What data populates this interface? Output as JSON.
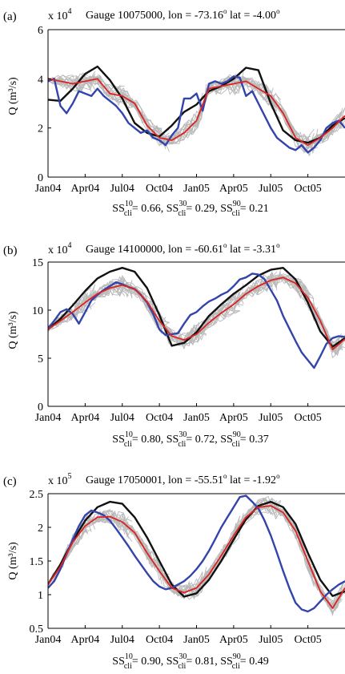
{
  "chart_data": [
    {
      "type": "line",
      "panel_label": "(a)",
      "exponent_label": "x 10",
      "exponent": "4",
      "title": "Gauge 10075000, lon = -73.16",
      "title_deg1": "o",
      "title_mid": " lat = -4.00",
      "title_deg2": "o",
      "ylabel": "Q (m³/s)",
      "xticks": [
        "Jan04",
        "Apr04",
        "Jul04",
        "Oct04",
        "Jan05",
        "Apr05",
        "Jul05",
        "Oct05"
      ],
      "yticks": [
        "0",
        "2",
        "4",
        "6"
      ],
      "ylim": [
        0,
        6
      ],
      "xlim": [
        0,
        24
      ],
      "grid": false,
      "skill": {
        "s10": "= 0.66, SS",
        "s30": "= 0.29, SS",
        "s90": "= 0.21"
      },
      "series": [
        {
          "color": "#111111",
          "width": 2.4,
          "x": [
            0,
            1,
            2,
            3,
            4,
            5,
            6,
            7,
            8,
            9,
            10,
            11,
            12,
            13,
            14,
            15,
            16,
            17,
            18,
            19,
            20,
            21,
            22,
            23,
            24
          ],
          "y": [
            3.15,
            3.1,
            3.6,
            4.2,
            4.5,
            3.95,
            3.2,
            2.2,
            1.8,
            1.65,
            2.1,
            2.65,
            2.95,
            3.5,
            3.7,
            4.0,
            4.45,
            4.35,
            3.0,
            1.9,
            1.5,
            1.4,
            1.6,
            2.1,
            2.4
          ]
        },
        {
          "color": "#3344aa",
          "width": 2.4,
          "x": [
            0,
            0.5,
            1,
            1.5,
            2,
            2.5,
            3,
            3.5,
            4,
            4.5,
            5,
            5.5,
            6,
            6.5,
            7,
            7.5,
            8,
            8.5,
            9,
            9.5,
            10,
            10.5,
            11,
            11.5,
            12,
            12.5,
            13,
            13.5,
            14,
            14.5,
            15,
            15.5,
            16,
            16.5,
            17,
            17.5,
            18,
            18.5,
            19,
            19.5,
            20,
            20.5,
            21,
            21.5,
            22,
            22.5,
            23,
            23.5,
            24
          ],
          "y": [
            3.9,
            4.0,
            2.9,
            2.6,
            3.0,
            3.5,
            3.4,
            3.3,
            3.6,
            3.3,
            3.1,
            2.9,
            2.6,
            2.2,
            2.0,
            1.8,
            1.9,
            1.6,
            1.5,
            1.3,
            1.7,
            2.0,
            3.2,
            3.2,
            3.4,
            2.7,
            3.8,
            3.9,
            3.8,
            3.9,
            4.1,
            4.05,
            3.3,
            3.5,
            3.0,
            2.5,
            2.0,
            1.6,
            1.4,
            1.2,
            1.1,
            1.3,
            1.0,
            1.2,
            1.5,
            2.0,
            2.2,
            2.3,
            2.0
          ]
        },
        {
          "color": "#dd2222",
          "width": 1.8,
          "x": [
            0,
            1,
            2,
            3,
            4,
            5,
            6,
            7,
            8,
            9,
            10,
            11,
            12,
            13,
            14,
            15,
            16,
            17,
            18,
            19,
            20,
            21,
            22,
            23,
            24
          ],
          "y": [
            4.0,
            3.9,
            3.8,
            3.9,
            4.0,
            3.4,
            3.3,
            3.0,
            2.1,
            1.6,
            1.5,
            1.8,
            2.3,
            3.6,
            3.7,
            3.8,
            3.9,
            3.6,
            3.3,
            2.6,
            1.6,
            1.3,
            1.6,
            2.0,
            2.5
          ]
        }
      ]
    },
    {
      "type": "line",
      "panel_label": "(b)",
      "exponent_label": "x 10",
      "exponent": "4",
      "title": "Gauge 14100000, lon = -60.61",
      "title_deg1": "o",
      "title_mid": " lat = -3.31",
      "title_deg2": "o",
      "ylabel": "Q (m³/s)",
      "xticks": [
        "Jan04",
        "Apr04",
        "Jul04",
        "Oct04",
        "Jan05",
        "Apr05",
        "Jul05",
        "Oct05"
      ],
      "yticks": [
        "0",
        "5",
        "10",
        "15"
      ],
      "ylim": [
        0,
        15
      ],
      "xlim": [
        0,
        24
      ],
      "grid": false,
      "skill": {
        "s10": "= 0.80, SS",
        "s30": "= 0.72, SS",
        "s90": "= 0.37"
      },
      "series": [
        {
          "color": "#111111",
          "width": 2.4,
          "x": [
            0,
            1,
            2,
            3,
            4,
            5,
            6,
            7,
            8,
            9,
            10,
            11,
            12,
            13,
            14,
            15,
            16,
            17,
            18,
            19,
            20,
            21,
            22,
            23,
            24
          ],
          "y": [
            8.0,
            9.1,
            10.5,
            12.0,
            13.3,
            14.0,
            14.4,
            14.0,
            12.3,
            9.5,
            6.3,
            6.6,
            7.7,
            9.4,
            10.6,
            11.7,
            12.6,
            13.6,
            14.2,
            14.4,
            13.2,
            10.8,
            7.8,
            6.2,
            7.1
          ]
        },
        {
          "color": "#3344aa",
          "width": 2.4,
          "x": [
            0,
            0.5,
            1,
            1.5,
            2,
            2.5,
            3,
            3.5,
            4,
            4.5,
            5,
            5.5,
            6,
            6.5,
            7,
            7.5,
            8,
            8.5,
            9,
            9.5,
            10,
            10.5,
            11,
            11.5,
            12,
            12.5,
            13,
            13.5,
            14,
            14.5,
            15,
            15.5,
            16,
            16.5,
            17,
            17.5,
            18,
            18.5,
            19,
            19.5,
            20,
            20.5,
            21,
            21.5,
            22,
            22.5,
            23,
            23.5,
            24
          ],
          "y": [
            8.1,
            8.9,
            9.8,
            10.1,
            9.6,
            8.6,
            9.8,
            11.0,
            11.6,
            12.1,
            12.5,
            12.9,
            12.7,
            12.4,
            12.2,
            11.6,
            10.8,
            9.6,
            8.0,
            7.4,
            7.5,
            7.6,
            8.6,
            9.5,
            9.8,
            10.4,
            10.9,
            11.2,
            11.6,
            11.9,
            12.5,
            13.2,
            13.4,
            13.8,
            13.7,
            13.2,
            12.1,
            11.0,
            9.4,
            8.1,
            6.8,
            5.6,
            4.8,
            4.0,
            5.2,
            6.5,
            7.1,
            7.3,
            7.2
          ]
        },
        {
          "color": "#dd2222",
          "width": 1.8,
          "x": [
            0,
            1,
            2,
            3,
            4,
            5,
            6,
            7,
            8,
            9,
            10,
            11,
            12,
            13,
            14,
            15,
            16,
            17,
            18,
            19,
            20,
            21,
            22,
            23,
            24
          ],
          "y": [
            8.0,
            8.9,
            9.8,
            10.8,
            11.7,
            12.3,
            12.6,
            12.2,
            10.9,
            8.9,
            7.3,
            6.9,
            7.5,
            8.7,
            9.7,
            10.6,
            11.7,
            12.5,
            13.1,
            13.4,
            12.8,
            11.3,
            8.9,
            5.9,
            7.0
          ]
        }
      ]
    },
    {
      "type": "line",
      "panel_label": "(c)",
      "exponent_label": "x 10",
      "exponent": "5",
      "title": "Gauge 17050001, lon = -55.51",
      "title_deg1": "o",
      "title_mid": " lat = -1.92",
      "title_deg2": "o",
      "ylabel": "Q (m³/s)",
      "xticks": [
        "Jan04",
        "Apr04",
        "Jul04",
        "Oct04",
        "Jan05",
        "Apr05",
        "Jul05",
        "Oct05"
      ],
      "yticks": [
        "0.5",
        "1",
        "1.5",
        "2",
        "2.5"
      ],
      "ylim": [
        0.5,
        2.5
      ],
      "xlim": [
        0,
        24
      ],
      "grid": false,
      "skill": {
        "s10": "= 0.90, SS",
        "s30": "= 0.81, SS",
        "s90": "= 0.49"
      },
      "series": [
        {
          "color": "#111111",
          "width": 2.4,
          "x": [
            0,
            1,
            2,
            3,
            4,
            5,
            6,
            7,
            8,
            9,
            10,
            11,
            12,
            13,
            14,
            15,
            16,
            17,
            18,
            19,
            20,
            21,
            22,
            23,
            24
          ],
          "y": [
            1.15,
            1.45,
            1.8,
            2.1,
            2.3,
            2.38,
            2.35,
            2.15,
            1.85,
            1.5,
            1.15,
            0.97,
            1.02,
            1.22,
            1.5,
            1.82,
            2.12,
            2.32,
            2.38,
            2.3,
            2.05,
            1.62,
            1.22,
            0.98,
            1.05
          ]
        },
        {
          "color": "#3344aa",
          "width": 2.4,
          "x": [
            0,
            0.5,
            1,
            1.5,
            2,
            2.5,
            3,
            3.5,
            4,
            4.5,
            5,
            5.5,
            6,
            6.5,
            7,
            7.5,
            8,
            8.5,
            9,
            9.5,
            10,
            10.5,
            11,
            11.5,
            12,
            12.5,
            13,
            13.5,
            14,
            14.5,
            15,
            15.5,
            16,
            16.5,
            17,
            17.5,
            18,
            18.5,
            19,
            19.5,
            20,
            20.5,
            21,
            21.5,
            22,
            22.5,
            23,
            23.5,
            24
          ],
          "y": [
            1.1,
            1.2,
            1.38,
            1.6,
            1.82,
            2.02,
            2.18,
            2.25,
            2.22,
            2.18,
            2.1,
            1.98,
            1.85,
            1.72,
            1.58,
            1.45,
            1.32,
            1.2,
            1.12,
            1.08,
            1.1,
            1.15,
            1.2,
            1.28,
            1.38,
            1.5,
            1.65,
            1.82,
            2.0,
            2.15,
            2.3,
            2.45,
            2.47,
            2.38,
            2.28,
            2.1,
            1.88,
            1.62,
            1.35,
            1.1,
            0.88,
            0.78,
            0.75,
            0.8,
            0.9,
            1.0,
            1.08,
            1.15,
            1.2
          ]
        },
        {
          "color": "#dd2222",
          "width": 1.8,
          "x": [
            0,
            1,
            2,
            3,
            4,
            5,
            6,
            7,
            8,
            9,
            10,
            11,
            12,
            13,
            14,
            15,
            16,
            17,
            18,
            19,
            20,
            21,
            22,
            23,
            24
          ],
          "y": [
            1.15,
            1.42,
            1.78,
            2.02,
            2.15,
            2.16,
            2.08,
            1.92,
            1.62,
            1.35,
            1.1,
            1.03,
            1.1,
            1.3,
            1.58,
            1.88,
            2.15,
            2.3,
            2.32,
            2.22,
            1.95,
            1.5,
            1.05,
            0.8,
            1.1
          ]
        }
      ]
    }
  ]
}
